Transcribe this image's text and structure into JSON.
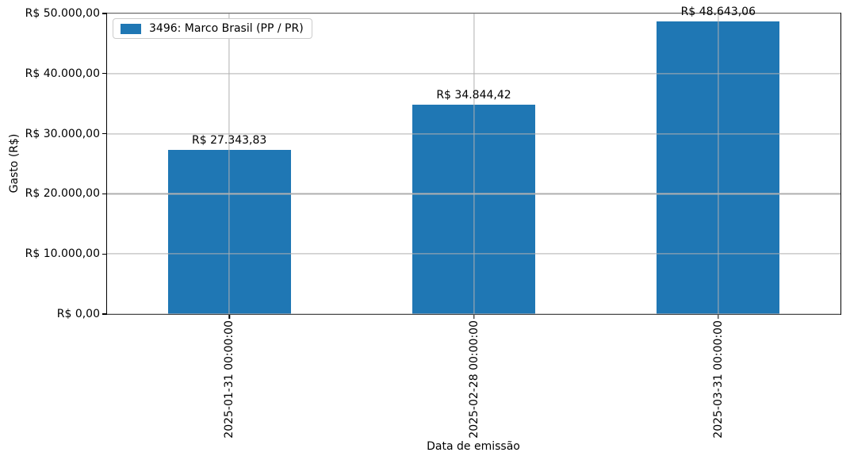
{
  "figure": {
    "background": "#ffffff"
  },
  "chart_data": {
    "type": "bar",
    "title": "",
    "xlabel": "Data de emissão",
    "ylabel": "Gasto (R$)",
    "categories": [
      "2025-01-31 00:00:00",
      "2025-02-28 00:00:00",
      "2025-03-31 00:00:00"
    ],
    "series": [
      {
        "name": "3496: Marco Brasil (PP / PR)",
        "values": [
          27343.83,
          34844.42,
          48643.06
        ]
      }
    ],
    "bar_value_labels": [
      "R$ 27.343,83",
      "R$ 34.844,42",
      "R$ 48.643,06"
    ],
    "ylim": [
      0,
      50000
    ],
    "yticks": [
      {
        "value": 0,
        "label": "R$ 0,00"
      },
      {
        "value": 10000,
        "label": "R$ 10.000,00"
      },
      {
        "value": 20000,
        "label": "R$ 20.000,00"
      },
      {
        "value": 30000,
        "label": "R$ 30.000,00"
      },
      {
        "value": 40000,
        "label": "R$ 40.000,00"
      },
      {
        "value": 50000,
        "label": "R$ 50.000,00"
      }
    ],
    "grid": true,
    "grid_over_bars": true,
    "x_tick_rotation": 90,
    "bar_width_fraction": 0.503,
    "legend": {
      "position": "upper left",
      "entries": [
        {
          "label": "3496: Marco Brasil (PP / PR)",
          "color": "#1f77b4"
        }
      ]
    },
    "colors": {
      "bar": "#1f77b4",
      "grid": "#b0b0b0",
      "spine": "#000000",
      "text": "#000000",
      "legend_border": "#cccccc"
    }
  }
}
